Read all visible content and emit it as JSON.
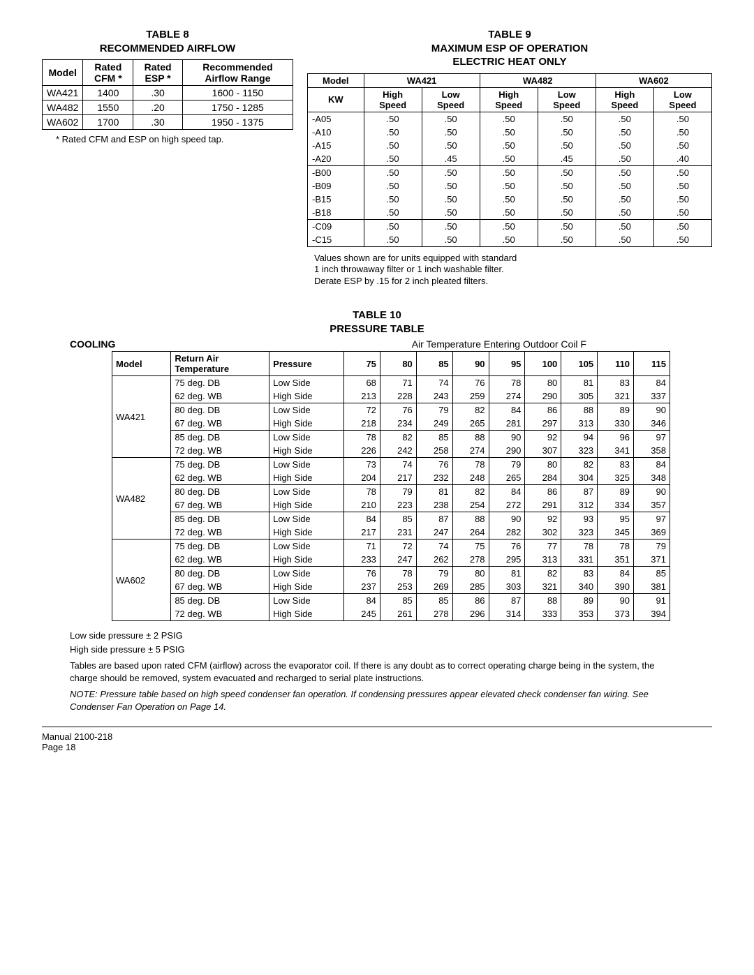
{
  "table8": {
    "title_a": "TABLE  8",
    "title_b": "RECOMMENDED AIRFLOW",
    "headers": [
      "Model",
      "Rated CFM *",
      "Rated ESP  *",
      "Recommended Airflow Range"
    ],
    "rows": [
      [
        "WA421",
        "1400",
        ".30",
        "1600 - 1150"
      ],
      [
        "WA482",
        "1550",
        ".20",
        "1750 - 1285"
      ],
      [
        "WA602",
        "1700",
        ".30",
        "1950 - 1375"
      ]
    ],
    "note": "*  Rated CFM and ESP on high speed tap."
  },
  "table9": {
    "title_a": "TABLE  9",
    "title_b": "MAXIMUM ESP OF OPERATION",
    "title_c": "ELECTRIC HEAT ONLY",
    "models": [
      "WA421",
      "WA482",
      "WA602"
    ],
    "header_row2": [
      "KW",
      "High Speed",
      "Low Speed",
      "High Speed",
      "Low Speed",
      "High Speed",
      "Low Speed"
    ],
    "groups": [
      [
        [
          "-A05",
          ".50",
          ".50",
          ".50",
          ".50",
          ".50",
          ".50"
        ],
        [
          "-A10",
          ".50",
          ".50",
          ".50",
          ".50",
          ".50",
          ".50"
        ],
        [
          "-A15",
          ".50",
          ".50",
          ".50",
          ".50",
          ".50",
          ".50"
        ],
        [
          "-A20",
          ".50",
          ".45",
          ".50",
          ".45",
          ".50",
          ".40"
        ]
      ],
      [
        [
          "-B00",
          ".50",
          ".50",
          ".50",
          ".50",
          ".50",
          ".50"
        ],
        [
          "-B09",
          ".50",
          ".50",
          ".50",
          ".50",
          ".50",
          ".50"
        ],
        [
          "-B15",
          ".50",
          ".50",
          ".50",
          ".50",
          ".50",
          ".50"
        ],
        [
          "-B18",
          ".50",
          ".50",
          ".50",
          ".50",
          ".50",
          ".50"
        ]
      ],
      [
        [
          "-C09",
          ".50",
          ".50",
          ".50",
          ".50",
          ".50",
          ".50"
        ],
        [
          "-C15",
          ".50",
          ".50",
          ".50",
          ".50",
          ".50",
          ".50"
        ]
      ]
    ],
    "note1": "Values shown are for units equipped with standard",
    "note2": "1 inch throwaway filter or 1 inch washable filter.",
    "note3": "Derate ESP by .15 for 2 inch pleated filters."
  },
  "table10": {
    "title_a": "TABLE  10",
    "title_b": "PRESSURE TABLE",
    "cooling_label": "COOLING",
    "air_temp_label": "Air Temperature Entering Outdoor Coil  F",
    "col_headers": [
      "Model",
      "Return Air Temperature",
      "Pressure",
      "75",
      "80",
      "85",
      "90",
      "95",
      "100",
      "105",
      "110",
      "115"
    ],
    "models": [
      {
        "name": "WA421",
        "blocks": [
          {
            "ret": [
              "75 deg. DB",
              "62 deg. WB"
            ],
            "rows": [
              [
                "Low Side",
                "68",
                "71",
                "74",
                "76",
                "78",
                "80",
                "81",
                "83",
                "84"
              ],
              [
                "High Side",
                "213",
                "228",
                "243",
                "259",
                "274",
                "290",
                "305",
                "321",
                "337"
              ]
            ]
          },
          {
            "ret": [
              "80 deg. DB",
              "67 deg. WB"
            ],
            "rows": [
              [
                "Low Side",
                "72",
                "76",
                "79",
                "82",
                "84",
                "86",
                "88",
                "89",
                "90"
              ],
              [
                "High Side",
                "218",
                "234",
                "249",
                "265",
                "281",
                "297",
                "313",
                "330",
                "346"
              ]
            ]
          },
          {
            "ret": [
              "85 deg. DB",
              "72 deg. WB"
            ],
            "rows": [
              [
                "Low Side",
                "78",
                "82",
                "85",
                "88",
                "90",
                "92",
                "94",
                "96",
                "97"
              ],
              [
                "High Side",
                "226",
                "242",
                "258",
                "274",
                "290",
                "307",
                "323",
                "341",
                "358"
              ]
            ]
          }
        ]
      },
      {
        "name": "WA482",
        "blocks": [
          {
            "ret": [
              "75 deg. DB",
              "62 deg. WB"
            ],
            "rows": [
              [
                "Low Side",
                "73",
                "74",
                "76",
                "78",
                "79",
                "80",
                "82",
                "83",
                "84"
              ],
              [
                "High Side",
                "204",
                "217",
                "232",
                "248",
                "265",
                "284",
                "304",
                "325",
                "348"
              ]
            ]
          },
          {
            "ret": [
              "80 deg. DB",
              "67 deg. WB"
            ],
            "rows": [
              [
                "Low Side",
                "78",
                "79",
                "81",
                "82",
                "84",
                "86",
                "87",
                "89",
                "90"
              ],
              [
                "High Side",
                "210",
                "223",
                "238",
                "254",
                "272",
                "291",
                "312",
                "334",
                "357"
              ]
            ]
          },
          {
            "ret": [
              "85 deg. DB",
              "72 deg. WB"
            ],
            "rows": [
              [
                "Low Side",
                "84",
                "85",
                "87",
                "88",
                "90",
                "92",
                "93",
                "95",
                "97"
              ],
              [
                "High Side",
                "217",
                "231",
                "247",
                "264",
                "282",
                "302",
                "323",
                "345",
                "369"
              ]
            ]
          }
        ]
      },
      {
        "name": "WA602",
        "blocks": [
          {
            "ret": [
              "75 deg. DB",
              "62 deg. WB"
            ],
            "rows": [
              [
                "Low Side",
                "71",
                "72",
                "74",
                "75",
                "76",
                "77",
                "78",
                "78",
                "79"
              ],
              [
                "High Side",
                "233",
                "247",
                "262",
                "278",
                "295",
                "313",
                "331",
                "351",
                "371"
              ]
            ]
          },
          {
            "ret": [
              "80 deg. DB",
              "67 deg. WB"
            ],
            "rows": [
              [
                "Low Side",
                "76",
                "78",
                "79",
                "80",
                "81",
                "82",
                "83",
                "84",
                "85"
              ],
              [
                "High Side",
                "237",
                "253",
                "269",
                "285",
                "303",
                "321",
                "340",
                "390",
                "381"
              ]
            ]
          },
          {
            "ret": [
              "85 deg. DB",
              "72 deg. WB"
            ],
            "rows": [
              [
                "Low Side",
                "84",
                "85",
                "85",
                "86",
                "87",
                "88",
                "89",
                "90",
                "91"
              ],
              [
                "High Side",
                "245",
                "261",
                "278",
                "296",
                "314",
                "333",
                "353",
                "373",
                "394"
              ]
            ]
          }
        ]
      }
    ],
    "notes": {
      "n1": "Low side pressure  ± 2 PSIG",
      "n2": "High side pressure  ± 5 PSIG",
      "n3": "Tables are based upon rated CFM (airflow) across the evaporator coil.  If there is any doubt as to correct operating charge being in the system, the charge should be removed, system evacuated and recharged to serial plate instructions.",
      "n4": "NOTE:    Pressure table based on high speed condenser fan operation.  If condensing pressures appear elevated check condenser fan wiring.  See  Condenser Fan Operation  on Page 14."
    }
  },
  "footer": {
    "manual": "Manual    2100-218",
    "page": "Page  18"
  }
}
